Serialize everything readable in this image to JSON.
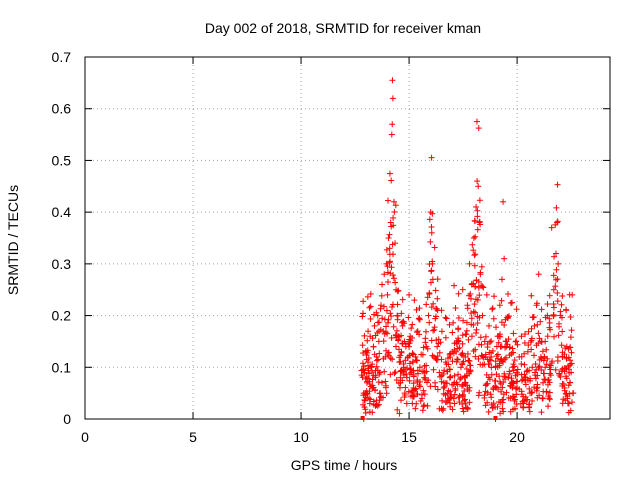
{
  "chart_data": {
    "type": "scatter",
    "title": "Day 002 of 2018, SRMTID for receiver kman",
    "xlabel": "GPS time / hours",
    "ylabel": "SRMTID / TECUs",
    "xlim": [
      0,
      24.3
    ],
    "ylim": [
      0,
      0.7
    ],
    "x_ticks": [
      0,
      5,
      10,
      15,
      20
    ],
    "y_ticks": [
      0,
      0.1,
      0.2,
      0.3,
      0.4,
      0.5,
      0.6,
      0.7
    ],
    "x_tick_labels": [
      "0",
      "5",
      "10",
      "15",
      "20"
    ],
    "y_tick_labels": [
      "0",
      "0.1",
      "0.2",
      "0.3",
      "0.4",
      "0.5",
      "0.6",
      "0.7"
    ],
    "grid": true,
    "marker": "+",
    "color": "#ff0000",
    "data_start_hours": 12.8,
    "data_end_hours": 22.6,
    "series": [
      {
        "name": "SRMTID",
        "points": [
          [
            12.9,
            0.0
          ],
          [
            19.0,
            0.0
          ],
          [
            12.9,
            0.05
          ],
          [
            12.95,
            0.09
          ],
          [
            13.0,
            0.13
          ],
          [
            13.05,
            0.07
          ],
          [
            13.1,
            0.11
          ],
          [
            13.15,
            0.04
          ],
          [
            13.2,
            0.16
          ],
          [
            13.25,
            0.1
          ],
          [
            13.3,
            0.06
          ],
          [
            13.35,
            0.14
          ],
          [
            13.4,
            0.18
          ],
          [
            13.45,
            0.08
          ],
          [
            13.5,
            0.12
          ],
          [
            13.55,
            0.2
          ],
          [
            13.6,
            0.15
          ],
          [
            13.65,
            0.09
          ],
          [
            13.7,
            0.22
          ],
          [
            13.75,
            0.26
          ],
          [
            13.8,
            0.17
          ],
          [
            13.85,
            0.28
          ],
          [
            13.9,
            0.12
          ],
          [
            13.95,
            0.3
          ],
          [
            14.0,
            0.24
          ],
          [
            14.05,
            0.35
          ],
          [
            14.1,
            0.33
          ],
          [
            14.15,
            0.38
          ],
          [
            14.2,
            0.55
          ],
          [
            14.22,
            0.57
          ],
          [
            14.25,
            0.62
          ],
          [
            14.23,
            0.655
          ],
          [
            14.3,
            0.42
          ],
          [
            14.35,
            0.34
          ],
          [
            14.4,
            0.25
          ],
          [
            14.45,
            0.2
          ],
          [
            14.5,
            0.16
          ],
          [
            14.55,
            0.11
          ],
          [
            14.6,
            0.07
          ],
          [
            14.65,
            0.13
          ],
          [
            14.7,
            0.18
          ],
          [
            14.75,
            0.1
          ],
          [
            14.8,
            0.05
          ],
          [
            14.85,
            0.14
          ],
          [
            14.9,
            0.08
          ],
          [
            14.95,
            0.12
          ],
          [
            15.0,
            0.24
          ],
          [
            15.05,
            0.16
          ],
          [
            15.1,
            0.09
          ],
          [
            15.15,
            0.03
          ],
          [
            15.2,
            0.06
          ],
          [
            15.3,
            0.12
          ],
          [
            15.4,
            0.17
          ],
          [
            15.5,
            0.1
          ],
          [
            15.6,
            0.04
          ],
          [
            15.7,
            0.08
          ],
          [
            15.8,
            0.14
          ],
          [
            15.9,
            0.2
          ],
          [
            16.0,
            0.4
          ],
          [
            16.05,
            0.36
          ],
          [
            16.08,
            0.3
          ],
          [
            16.1,
            0.27
          ],
          [
            16.15,
            0.12
          ],
          [
            16.2,
            0.07
          ],
          [
            16.3,
            0.14
          ],
          [
            16.4,
            0.09
          ],
          [
            16.5,
            0.02
          ],
          [
            16.6,
            0.06
          ],
          [
            16.7,
            0.11
          ],
          [
            16.8,
            0.04
          ],
          [
            16.9,
            0.08
          ],
          [
            17.0,
            0.13
          ],
          [
            17.1,
            0.03
          ],
          [
            17.2,
            0.07
          ],
          [
            17.3,
            0.15
          ],
          [
            17.4,
            0.1
          ],
          [
            17.5,
            0.19
          ],
          [
            17.6,
            0.12
          ],
          [
            17.7,
            0.22
          ],
          [
            17.8,
            0.3
          ],
          [
            17.9,
            0.26
          ],
          [
            18.0,
            0.35
          ],
          [
            18.1,
            0.41
          ],
          [
            18.15,
            0.46
          ],
          [
            18.2,
            0.45
          ],
          [
            18.25,
            0.38
          ],
          [
            18.3,
            0.28
          ],
          [
            18.4,
            0.2
          ],
          [
            18.5,
            0.15
          ],
          [
            18.6,
            0.24
          ],
          [
            18.7,
            0.18
          ],
          [
            18.8,
            0.12
          ],
          [
            18.9,
            0.06
          ],
          [
            19.0,
            0.1
          ],
          [
            19.1,
            0.16
          ],
          [
            19.2,
            0.22
          ],
          [
            19.3,
            0.27
          ],
          [
            19.35,
            0.42
          ],
          [
            19.4,
            0.31
          ],
          [
            19.5,
            0.14
          ],
          [
            19.6,
            0.08
          ],
          [
            19.7,
            0.04
          ],
          [
            19.8,
            0.1
          ],
          [
            19.9,
            0.02
          ],
          [
            20.0,
            0.06
          ],
          [
            20.1,
            0.12
          ],
          [
            20.2,
            0.16
          ],
          [
            20.3,
            0.03
          ],
          [
            20.4,
            0.08
          ],
          [
            20.5,
            0.13
          ],
          [
            20.6,
            0.05
          ],
          [
            20.7,
            0.1
          ],
          [
            20.8,
            0.18
          ],
          [
            20.9,
            0.22
          ],
          [
            21.0,
            0.28
          ],
          [
            21.1,
            0.12
          ],
          [
            21.2,
            0.07
          ],
          [
            21.3,
            0.15
          ],
          [
            21.4,
            0.2
          ],
          [
            21.5,
            0.1
          ],
          [
            21.6,
            0.37
          ],
          [
            21.7,
            0.25
          ],
          [
            21.8,
            0.32
          ],
          [
            21.85,
            0.38
          ],
          [
            21.9,
            0.3
          ],
          [
            22.0,
            0.2
          ],
          [
            22.1,
            0.12
          ],
          [
            22.2,
            0.06
          ],
          [
            22.3,
            0.14
          ],
          [
            22.4,
            0.03
          ],
          [
            22.5,
            0.09
          ],
          [
            22.55,
            0.24
          ],
          [
            22.6,
            0.05
          ]
        ]
      }
    ]
  }
}
